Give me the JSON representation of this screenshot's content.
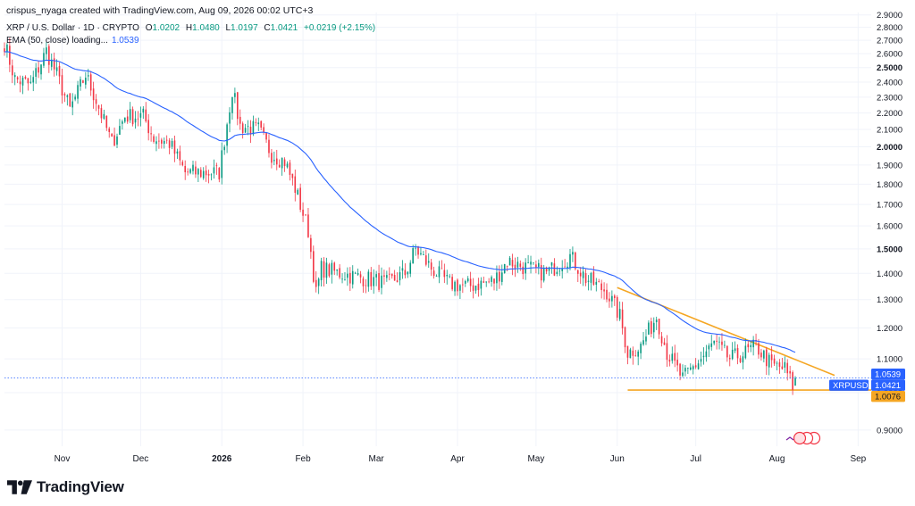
{
  "header": {
    "credit": "crispus_nyaga created with TradingView.com, Aug 09, 2026 00:02 UTC+3",
    "symbol": "XRP / U.S. Dollar · 1D · CRYPTO",
    "ohlc": {
      "o_label": "O",
      "o": "1.0202",
      "h_label": "H",
      "h": "1.0480",
      "l_label": "L",
      "l": "1.0197",
      "c_label": "C",
      "c": "1.0421",
      "change": "+0.0219 (+2.15%)"
    },
    "ema_label": "EMA (50, close) loading...",
    "ema_value": "1.0539"
  },
  "branding": {
    "logo_text": "TradingView"
  },
  "chart_data": {
    "type": "candlestick",
    "symbol": "XRPUSD",
    "interval": "1D",
    "y_scale": "log",
    "ylim": [
      0.86,
      2.92
    ],
    "y_ticks": [
      {
        "v": 0.9,
        "label": "0.9000",
        "bold": false
      },
      {
        "v": 1.0,
        "label": "1.0000",
        "bold": true
      },
      {
        "v": 1.1,
        "label": "1.1000",
        "bold": false
      },
      {
        "v": 1.2,
        "label": "1.2000",
        "bold": false
      },
      {
        "v": 1.3,
        "label": "1.3000",
        "bold": false
      },
      {
        "v": 1.4,
        "label": "1.4000",
        "bold": false
      },
      {
        "v": 1.5,
        "label": "1.5000",
        "bold": true
      },
      {
        "v": 1.6,
        "label": "1.6000",
        "bold": false
      },
      {
        "v": 1.7,
        "label": "1.7000",
        "bold": false
      },
      {
        "v": 1.8,
        "label": "1.8000",
        "bold": false
      },
      {
        "v": 1.9,
        "label": "1.9000",
        "bold": false
      },
      {
        "v": 2.0,
        "label": "2.0000",
        "bold": true
      },
      {
        "v": 2.1,
        "label": "2.1000",
        "bold": false
      },
      {
        "v": 2.2,
        "label": "2.2000",
        "bold": false
      },
      {
        "v": 2.3,
        "label": "2.3000",
        "bold": false
      },
      {
        "v": 2.4,
        "label": "2.4000",
        "bold": false
      },
      {
        "v": 2.5,
        "label": "2.5000",
        "bold": true
      },
      {
        "v": 2.6,
        "label": "2.6000",
        "bold": false
      },
      {
        "v": 2.7,
        "label": "2.7000",
        "bold": false
      },
      {
        "v": 2.8,
        "label": "2.8000",
        "bold": false
      },
      {
        "v": 2.9,
        "label": "2.9000",
        "bold": false
      }
    ],
    "x_ticks": [
      {
        "date": "2025-11-01",
        "label": "Nov",
        "bold": false
      },
      {
        "date": "2025-12-01",
        "label": "Dec",
        "bold": false
      },
      {
        "date": "2026-01-01",
        "label": "2026",
        "bold": true
      },
      {
        "date": "2026-02-01",
        "label": "Feb",
        "bold": false
      },
      {
        "date": "2026-03-01",
        "label": "Mar",
        "bold": false
      },
      {
        "date": "2026-04-01",
        "label": "Apr",
        "bold": false
      },
      {
        "date": "2026-05-01",
        "label": "May",
        "bold": false
      },
      {
        "date": "2026-06-01",
        "label": "Jun",
        "bold": false
      },
      {
        "date": "2026-07-01",
        "label": "Jul",
        "bold": false
      },
      {
        "date": "2026-08-01",
        "label": "Aug",
        "bold": false
      },
      {
        "date": "2026-09-01",
        "label": "Sep",
        "bold": false
      }
    ],
    "x_range": [
      "2025-10-10",
      "2026-09-06"
    ],
    "anchors": [
      {
        "date": "2025-10-10",
        "close": 2.68
      },
      {
        "date": "2025-10-14",
        "close": 2.42
      },
      {
        "date": "2025-10-20",
        "close": 2.38
      },
      {
        "date": "2025-10-26",
        "close": 2.62
      },
      {
        "date": "2025-10-30",
        "close": 2.45
      },
      {
        "date": "2025-11-04",
        "close": 2.22
      },
      {
        "date": "2025-11-10",
        "close": 2.45
      },
      {
        "date": "2025-11-14",
        "close": 2.28
      },
      {
        "date": "2025-11-20",
        "close": 2.02
      },
      {
        "date": "2025-11-25",
        "close": 2.18
      },
      {
        "date": "2025-12-02",
        "close": 2.18
      },
      {
        "date": "2025-12-06",
        "close": 2.05
      },
      {
        "date": "2025-12-12",
        "close": 2.02
      },
      {
        "date": "2025-12-18",
        "close": 1.86
      },
      {
        "date": "2025-12-24",
        "close": 1.86
      },
      {
        "date": "2025-12-31",
        "close": 1.86
      },
      {
        "date": "2026-01-05",
        "close": 2.35
      },
      {
        "date": "2026-01-08",
        "close": 2.12
      },
      {
        "date": "2026-01-15",
        "close": 2.1
      },
      {
        "date": "2026-01-20",
        "close": 1.96
      },
      {
        "date": "2026-01-25",
        "close": 1.92
      },
      {
        "date": "2026-01-29",
        "close": 1.78
      },
      {
        "date": "2026-02-03",
        "close": 1.58
      },
      {
        "date": "2026-02-06",
        "close": 1.32
      },
      {
        "date": "2026-02-08",
        "close": 1.42
      },
      {
        "date": "2026-02-15",
        "close": 1.4
      },
      {
        "date": "2026-02-25",
        "close": 1.38
      },
      {
        "date": "2026-03-05",
        "close": 1.36
      },
      {
        "date": "2026-03-12",
        "close": 1.4
      },
      {
        "date": "2026-03-16",
        "close": 1.5
      },
      {
        "date": "2026-03-22",
        "close": 1.42
      },
      {
        "date": "2026-03-29",
        "close": 1.36
      },
      {
        "date": "2026-04-05",
        "close": 1.35
      },
      {
        "date": "2026-04-15",
        "close": 1.37
      },
      {
        "date": "2026-04-20",
        "close": 1.45
      },
      {
        "date": "2026-04-28",
        "close": 1.42
      },
      {
        "date": "2026-05-05",
        "close": 1.4
      },
      {
        "date": "2026-05-10",
        "close": 1.44
      },
      {
        "date": "2026-05-14",
        "close": 1.47
      },
      {
        "date": "2026-05-20",
        "close": 1.38
      },
      {
        "date": "2026-05-28",
        "close": 1.33
      },
      {
        "date": "2026-06-02",
        "close": 1.24
      },
      {
        "date": "2026-06-05",
        "close": 1.12
      },
      {
        "date": "2026-06-10",
        "close": 1.14
      },
      {
        "date": "2026-06-16",
        "close": 1.24
      },
      {
        "date": "2026-06-20",
        "close": 1.12
      },
      {
        "date": "2026-06-26",
        "close": 1.04
      },
      {
        "date": "2026-07-03",
        "close": 1.1
      },
      {
        "date": "2026-07-08",
        "close": 1.15
      },
      {
        "date": "2026-07-14",
        "close": 1.1
      },
      {
        "date": "2026-07-20",
        "close": 1.12
      },
      {
        "date": "2026-07-24",
        "close": 1.14
      },
      {
        "date": "2026-07-30",
        "close": 1.08
      },
      {
        "date": "2026-08-04",
        "close": 1.07
      },
      {
        "date": "2026-08-07",
        "close": 1.02
      },
      {
        "date": "2026-08-08",
        "close": 1.0421
      }
    ],
    "ema": {
      "period": 50,
      "last": 1.0539,
      "color": "#2962ff"
    },
    "trendlines": [
      {
        "name": "descending-resistance",
        "from": {
          "date": "2026-06-01",
          "price": 1.345
        },
        "to": {
          "date": "2026-08-23",
          "price": 1.05
        },
        "color": "#f5a623"
      },
      {
        "name": "horizontal-support",
        "from": {
          "date": "2026-06-05",
          "price": 1.0076
        },
        "to": {
          "date": "2026-09-06",
          "price": 1.0076
        },
        "color": "#f5a623"
      }
    ],
    "price_labels": [
      {
        "text": "1.0539",
        "price": 1.0539,
        "bg": "#2962ff"
      },
      {
        "text": "1.0421",
        "price": 1.0421,
        "bg": "#2962ff"
      },
      {
        "text": "1.0076",
        "price": 1.0076,
        "bg": "#f5a623"
      }
    ],
    "symbol_tag": "XRPUSD",
    "colors": {
      "up": "#089981",
      "down": "#f23645",
      "ema": "#2962ff",
      "trend": "#f5a623",
      "grid": "#f0f3fa",
      "axis_text": "#131722"
    }
  }
}
